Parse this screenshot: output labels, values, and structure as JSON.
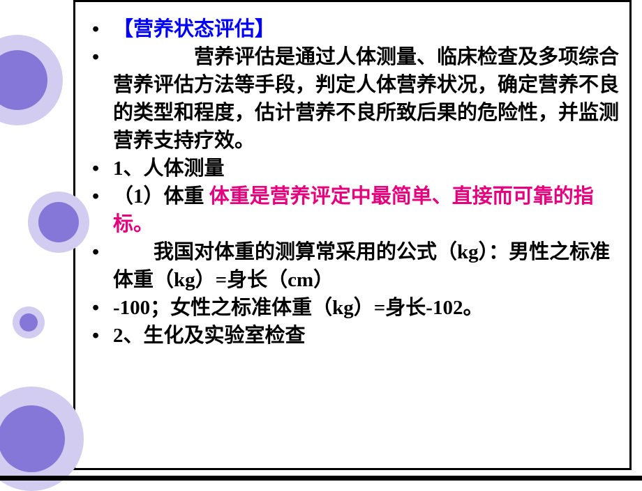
{
  "slide": {
    "title": "【营养状态评估】",
    "paragraph1_prefix": "",
    "paragraph1": "营养评估是通过人体测量、临床检查及多项综合营养评估方法等手段，判定人体营养状况，确定营养不良的类型和程度，估计营养不良所致后果的危险性，并监测营养支持疗效。",
    "item1": "1、人体测量",
    "item2_prefix": "（1）体重 ",
    "item2_highlight": "体重是营养评定中最简单、直接而可靠的指标。",
    "formula1_prefix": "",
    "formula1": "我国对体重的测算常采用的公式（kg）：男性之标准体重（kg）=身长（cm）",
    "formula2": "-100；女性之标准体重（kg）=身长-102。",
    "item3": "2、生化及实验室检查"
  },
  "styling": {
    "title_color": "#0000ff",
    "highlight_color": "#e6007e",
    "text_color": "#000000",
    "circle_outer_color": "#d2ccf0",
    "circle_inner_color": "#8577d8",
    "background_color": "#ffffff",
    "font_size": 29,
    "font_family": "SimSun",
    "font_weight": "bold",
    "slide_width": 920,
    "slide_height": 690
  }
}
